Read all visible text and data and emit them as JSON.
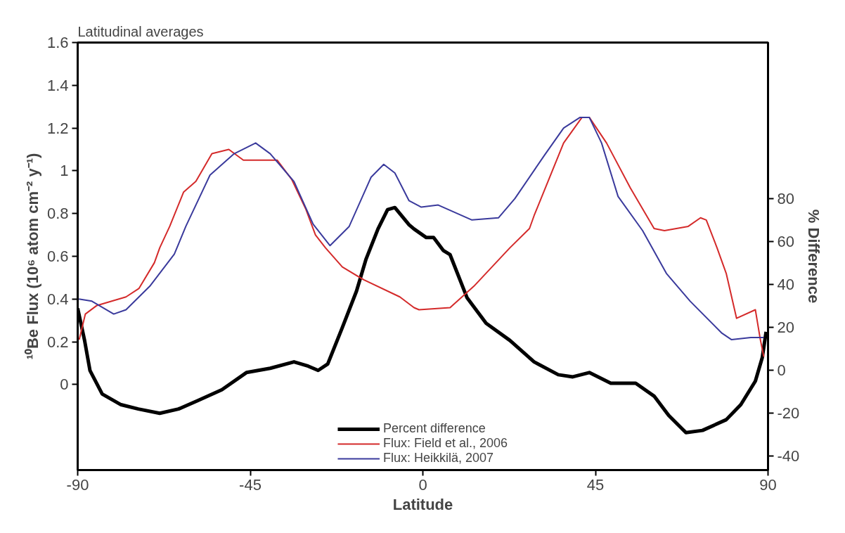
{
  "chart_data": {
    "type": "line",
    "title": "Latitudinal averages",
    "xlabel": "Latitude",
    "ylabel": "¹⁰Be Flux (10⁶ atom cm⁻² y⁻¹)",
    "y2label": "% Difference",
    "xlim": [
      -90,
      90
    ],
    "xticks": [
      -90,
      -45,
      0,
      45,
      90
    ],
    "ylim": [
      -0.4,
      1.6
    ],
    "yticks": [
      0,
      {
        "value": 0.2,
        "label": "0.2"
      },
      {
        "value": 0.4,
        "label": "0.4"
      },
      {
        "value": 0.6,
        "label": "0.6"
      },
      {
        "value": 0.8,
        "label": "0.8"
      },
      1,
      {
        "value": 1.2,
        "label": "1.2"
      },
      {
        "value": 1.4,
        "label": "1.4"
      },
      {
        "value": 1.6,
        "label": "1.6"
      }
    ],
    "y2lim": [
      -46.5,
      153
    ],
    "y2ticks": [
      -40,
      -20,
      0,
      20,
      40,
      60,
      80
    ],
    "grid": false,
    "legend": "bottom",
    "marker": "none",
    "line_style": "solid",
    "series": [
      {
        "name": "Percent difference",
        "color": "#000000",
        "axis": "y2",
        "x": [
          -90,
          -88.2,
          -86.8,
          -83.6,
          -78.7,
          -74.2,
          -68.6,
          -63.7,
          -58.6,
          -52.4,
          -46,
          -39.8,
          -33.6,
          -29.9,
          -27.3,
          -24.8,
          -21,
          -17.3,
          -14.8,
          -11.7,
          -9.2,
          -7.3,
          -3.6,
          -2.3,
          0.9,
          2.8,
          5.3,
          7.1,
          11.5,
          16.5,
          22.7,
          29,
          35.3,
          39.1,
          43.4,
          49,
          55.5,
          60.3,
          64.1,
          68.6,
          72.9,
          79.1,
          82.9,
          86.7,
          88.5,
          89.5
        ],
        "values": [
          29,
          14,
          0,
          -11,
          -16,
          -18,
          -20,
          -18,
          -14,
          -9,
          -1,
          1,
          4,
          2,
          0,
          3,
          20,
          37,
          52,
          66,
          75,
          76,
          68,
          66,
          62,
          62,
          56,
          54,
          34,
          22,
          14,
          4,
          -2,
          -3,
          -1,
          -6,
          -6,
          -12,
          -21,
          -29,
          -28,
          -23,
          -16,
          -5,
          6,
          18
        ]
      },
      {
        "name": "Flux: Field et al., 2006",
        "color": "#d42a2a",
        "x": [
          -89.6,
          -88,
          -85,
          -77.4,
          -74,
          -70,
          -68.6,
          -66,
          -62.4,
          -59.2,
          -55,
          -50.6,
          -46.8,
          -41.7,
          -38,
          -34.2,
          -30.5,
          -28,
          -25.4,
          -21,
          -15.4,
          -6,
          -2.3,
          -1,
          7.1,
          13.3,
          22.7,
          27.8,
          29,
          36.7,
          41.5,
          43.4,
          47.9,
          54.1,
          60.3,
          63,
          69.2,
          72.4,
          73.9,
          76.7,
          79.1,
          81.8,
          86.7,
          88,
          88.9
        ],
        "values": [
          0.21,
          0.33,
          0.37,
          0.41,
          0.45,
          0.57,
          0.64,
          0.74,
          0.9,
          0.95,
          1.08,
          1.1,
          1.05,
          1.05,
          1.05,
          0.96,
          0.82,
          0.7,
          0.64,
          0.55,
          0.49,
          0.41,
          0.36,
          0.35,
          0.36,
          0.46,
          0.64,
          0.73,
          0.79,
          1.13,
          1.25,
          1.25,
          1.13,
          0.92,
          0.73,
          0.72,
          0.74,
          0.78,
          0.77,
          0.64,
          0.52,
          0.31,
          0.35,
          0.21,
          0.13
        ]
      },
      {
        "name": "Flux: Heikkilä, 2007",
        "color": "#3a3a9c",
        "x": [
          -89.7,
          -86.3,
          -80.6,
          -77.4,
          -71.2,
          -64.8,
          -61.8,
          -55.5,
          -49.2,
          -43.6,
          -39.8,
          -33.6,
          -28.6,
          -24.2,
          -19.2,
          -13.5,
          -10.2,
          -7.3,
          -3.6,
          -0.4,
          4,
          12.8,
          19.7,
          24,
          31.6,
          36.7,
          41,
          43.4,
          46.6,
          50.9,
          57.3,
          63.5,
          69.7,
          78,
          80.5,
          85.5,
          88.9
        ],
        "values": [
          0.4,
          0.39,
          0.33,
          0.35,
          0.46,
          0.61,
          0.74,
          0.98,
          1.08,
          1.13,
          1.08,
          0.95,
          0.75,
          0.65,
          0.74,
          0.97,
          1.03,
          0.99,
          0.86,
          0.83,
          0.84,
          0.77,
          0.78,
          0.87,
          1.07,
          1.2,
          1.25,
          1.25,
          1.13,
          0.88,
          0.72,
          0.52,
          0.39,
          0.24,
          0.21,
          0.22,
          0.22
        ]
      }
    ]
  }
}
